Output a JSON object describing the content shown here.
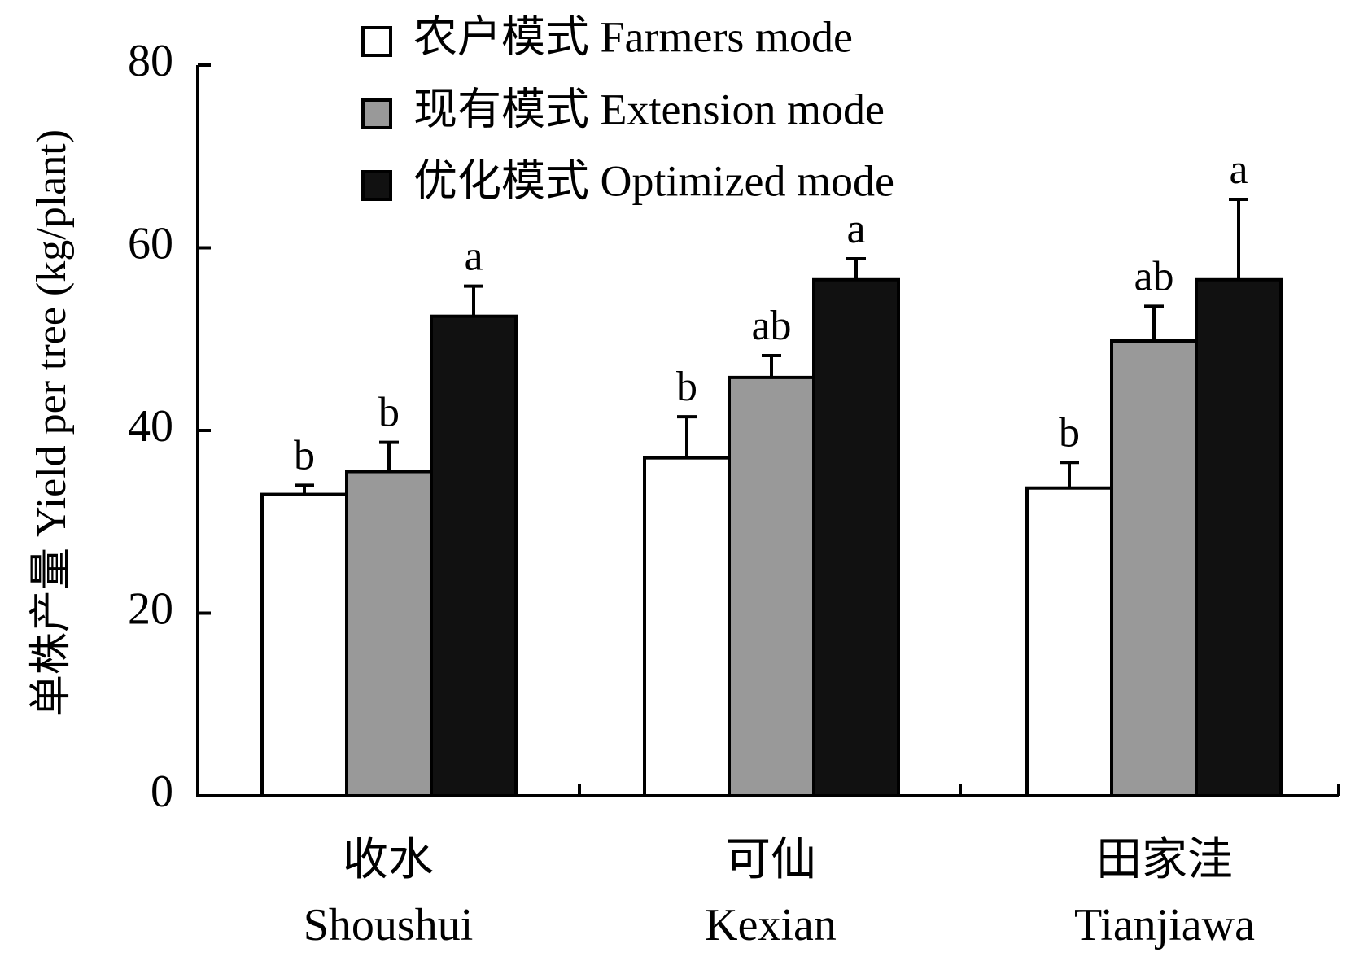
{
  "chart_data": {
    "type": "bar",
    "ylabel": "单株产量 Yield per tree (kg/plant)",
    "ylim": [
      0,
      80
    ],
    "yticks": [
      "0",
      "20",
      "40",
      "60",
      "80"
    ],
    "categories": [
      {
        "zh": "收水",
        "en": "Shoushui"
      },
      {
        "zh": "可仙",
        "en": "Kexian"
      },
      {
        "zh": "田家洼",
        "en": "Tianjiawa"
      }
    ],
    "series": [
      {
        "name": "农户模式 Farmers mode",
        "color": "#ffffff",
        "values": [
          33.0,
          37.0,
          33.7
        ],
        "errors": [
          1.0,
          4.5,
          2.8
        ],
        "labels": [
          "b",
          "b",
          "b"
        ]
      },
      {
        "name": "现有模式 Extension mode",
        "color": "#999999",
        "values": [
          35.5,
          45.8,
          49.8
        ],
        "errors": [
          3.2,
          2.4,
          3.8
        ],
        "labels": [
          "b",
          "ab",
          "ab"
        ]
      },
      {
        "name": "优化模式 Optimized mode",
        "color": "#111111",
        "values": [
          52.5,
          56.5,
          56.5
        ],
        "errors": [
          3.3,
          2.3,
          8.8
        ],
        "labels": [
          "a",
          "a",
          "a"
        ]
      }
    ],
    "legend_position": "top",
    "grid": false
  }
}
